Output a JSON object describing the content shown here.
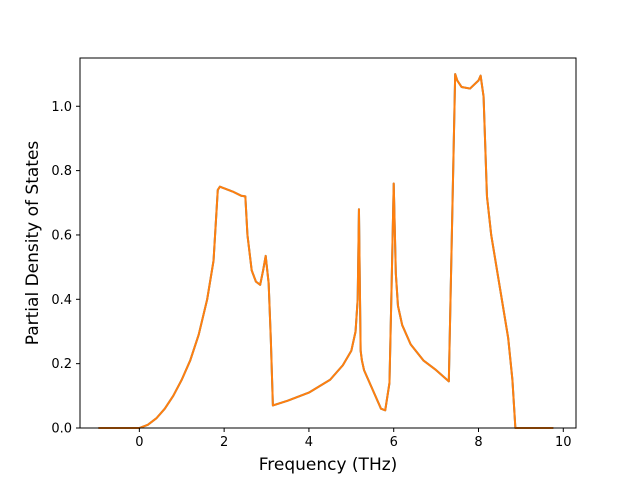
{
  "chart_data": {
    "type": "line",
    "title": "",
    "xlabel": "Frequency (THz)",
    "ylabel": "Partial Density of States",
    "xlim": [
      -1.4,
      10.3
    ],
    "ylim": [
      0.0,
      1.15
    ],
    "x_ticks": [
      0,
      2,
      4,
      6,
      8,
      10
    ],
    "x_tick_labels": [
      "0",
      "2",
      "4",
      "6",
      "8",
      "10"
    ],
    "y_ticks": [
      0.0,
      0.2,
      0.4,
      0.6,
      0.8,
      1.0
    ],
    "y_tick_labels": [
      "0.0",
      "0.2",
      "0.4",
      "0.6",
      "0.8",
      "1.0"
    ],
    "grid": false,
    "legend": "none",
    "series": [
      {
        "color": "#1f77b4",
        "x": [
          -0.95,
          -0.5,
          0.0,
          0.2,
          0.4,
          0.6,
          0.8,
          1.0,
          1.2,
          1.4,
          1.6,
          1.75,
          1.85,
          1.9,
          2.0,
          2.2,
          2.4,
          2.5,
          2.55,
          2.65,
          2.75,
          2.85,
          2.92,
          2.98,
          3.05,
          3.1,
          3.15,
          3.5,
          4.0,
          4.5,
          4.8,
          5.0,
          5.1,
          5.15,
          5.18,
          5.22,
          5.25,
          5.3,
          5.5,
          5.7,
          5.8,
          5.9,
          5.95,
          6.0,
          6.05,
          6.1,
          6.2,
          6.4,
          6.7,
          7.0,
          7.3,
          7.45,
          7.5,
          7.6,
          7.8,
          8.0,
          8.05,
          8.12,
          8.2,
          8.3,
          8.5,
          8.7,
          8.8,
          8.87,
          9.2,
          9.75
        ],
        "y": [
          0.0,
          0.0,
          0.0,
          0.01,
          0.03,
          0.06,
          0.1,
          0.15,
          0.21,
          0.29,
          0.4,
          0.52,
          0.74,
          0.75,
          0.745,
          0.735,
          0.722,
          0.72,
          0.6,
          0.49,
          0.455,
          0.445,
          0.49,
          0.535,
          0.45,
          0.28,
          0.07,
          0.085,
          0.11,
          0.15,
          0.195,
          0.24,
          0.3,
          0.4,
          0.68,
          0.24,
          0.21,
          0.18,
          0.12,
          0.06,
          0.055,
          0.14,
          0.44,
          0.76,
          0.48,
          0.38,
          0.32,
          0.26,
          0.21,
          0.18,
          0.145,
          1.1,
          1.08,
          1.06,
          1.055,
          1.08,
          1.095,
          1.03,
          0.72,
          0.6,
          0.44,
          0.28,
          0.15,
          0.0,
          0.0,
          0.0
        ]
      },
      {
        "color": "#ff7f0e",
        "x": [
          -0.95,
          -0.5,
          0.0,
          0.2,
          0.4,
          0.6,
          0.8,
          1.0,
          1.2,
          1.4,
          1.6,
          1.75,
          1.85,
          1.9,
          2.0,
          2.2,
          2.4,
          2.5,
          2.55,
          2.65,
          2.75,
          2.85,
          2.92,
          2.98,
          3.05,
          3.1,
          3.15,
          3.5,
          4.0,
          4.5,
          4.8,
          5.0,
          5.1,
          5.15,
          5.18,
          5.22,
          5.25,
          5.3,
          5.5,
          5.7,
          5.8,
          5.9,
          5.95,
          6.0,
          6.05,
          6.1,
          6.2,
          6.4,
          6.7,
          7.0,
          7.3,
          7.45,
          7.5,
          7.6,
          7.8,
          8.0,
          8.05,
          8.12,
          8.2,
          8.3,
          8.5,
          8.7,
          8.8,
          8.87,
          9.2,
          9.75
        ],
        "y": [
          0.0,
          0.0,
          0.0,
          0.01,
          0.03,
          0.06,
          0.1,
          0.15,
          0.21,
          0.29,
          0.4,
          0.52,
          0.74,
          0.75,
          0.745,
          0.735,
          0.722,
          0.72,
          0.6,
          0.49,
          0.455,
          0.445,
          0.49,
          0.535,
          0.45,
          0.28,
          0.07,
          0.085,
          0.11,
          0.15,
          0.195,
          0.24,
          0.3,
          0.4,
          0.68,
          0.24,
          0.21,
          0.18,
          0.12,
          0.06,
          0.055,
          0.14,
          0.44,
          0.76,
          0.48,
          0.38,
          0.32,
          0.26,
          0.21,
          0.18,
          0.145,
          1.1,
          1.08,
          1.06,
          1.055,
          1.08,
          1.095,
          1.03,
          0.72,
          0.6,
          0.44,
          0.28,
          0.15,
          0.0,
          0.0,
          0.0
        ]
      }
    ]
  }
}
